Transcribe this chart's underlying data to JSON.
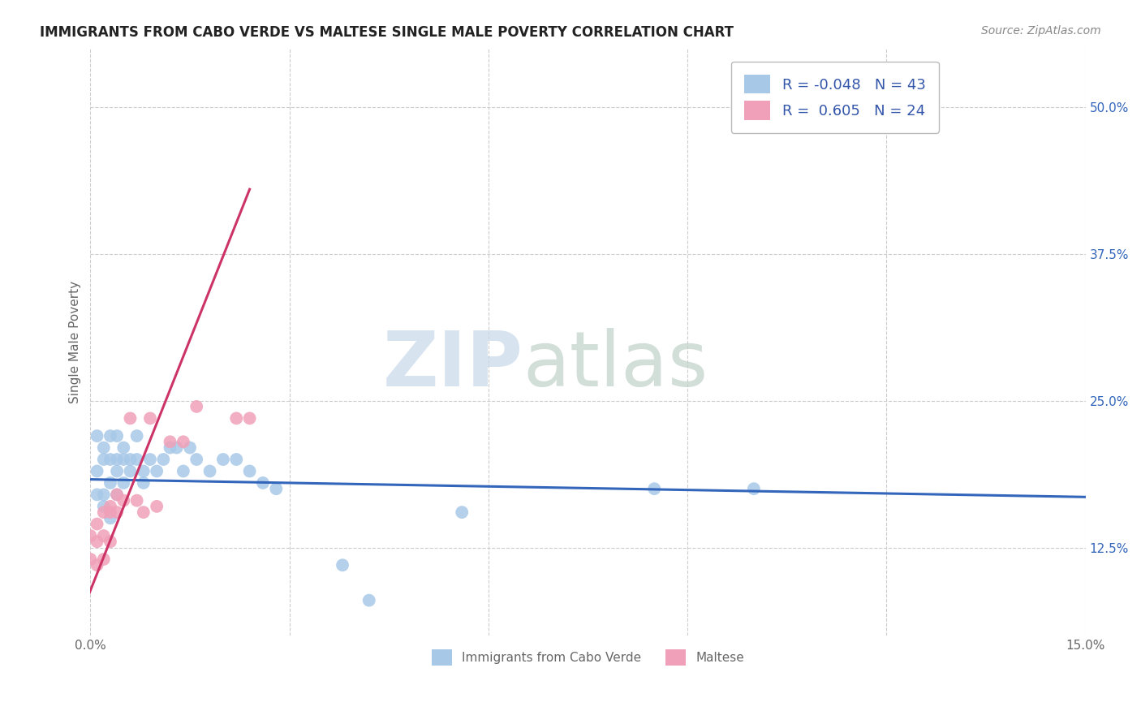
{
  "title": "IMMIGRANTS FROM CABO VERDE VS MALTESE SINGLE MALE POVERTY CORRELATION CHART",
  "source": "Source: ZipAtlas.com",
  "ylabel": "Single Male Poverty",
  "xlim": [
    0.0,
    0.15
  ],
  "ylim": [
    0.05,
    0.55
  ],
  "ytick_positions": [
    0.125,
    0.25,
    0.375,
    0.5
  ],
  "ytick_labels": [
    "12.5%",
    "25.0%",
    "37.5%",
    "50.0%"
  ],
  "cabo_verde_R": -0.048,
  "cabo_verde_N": 43,
  "maltese_R": 0.605,
  "maltese_N": 24,
  "cabo_verde_color": "#a8c8e8",
  "maltese_color": "#f0a0b8",
  "cabo_verde_line_color": "#3366bb",
  "maltese_line_color": "#cc3366",
  "legend_text_color": "#3355aa",
  "grid_color": "#cccccc",
  "background_color": "#ffffff",
  "title_color": "#222222",
  "source_color": "#888888",
  "axis_color": "#666666",
  "cabo_verde_x": [
    0.001,
    0.001,
    0.001,
    0.002,
    0.002,
    0.002,
    0.002,
    0.003,
    0.003,
    0.003,
    0.003,
    0.004,
    0.004,
    0.004,
    0.004,
    0.005,
    0.005,
    0.005,
    0.006,
    0.006,
    0.007,
    0.007,
    0.008,
    0.008,
    0.009,
    0.01,
    0.011,
    0.012,
    0.013,
    0.014,
    0.015,
    0.016,
    0.018,
    0.02,
    0.022,
    0.024,
    0.026,
    0.028,
    0.038,
    0.042,
    0.056,
    0.085,
    0.1
  ],
  "cabo_verde_y": [
    0.17,
    0.19,
    0.22,
    0.16,
    0.17,
    0.2,
    0.21,
    0.15,
    0.18,
    0.2,
    0.22,
    0.17,
    0.19,
    0.2,
    0.22,
    0.18,
    0.2,
    0.21,
    0.19,
    0.2,
    0.2,
    0.22,
    0.18,
    0.19,
    0.2,
    0.19,
    0.2,
    0.21,
    0.21,
    0.19,
    0.21,
    0.2,
    0.19,
    0.2,
    0.2,
    0.19,
    0.18,
    0.175,
    0.11,
    0.08,
    0.155,
    0.175,
    0.175
  ],
  "maltese_x": [
    0.0,
    0.0,
    0.001,
    0.001,
    0.001,
    0.002,
    0.002,
    0.002,
    0.003,
    0.003,
    0.003,
    0.004,
    0.004,
    0.005,
    0.006,
    0.007,
    0.008,
    0.009,
    0.01,
    0.012,
    0.014,
    0.016,
    0.022,
    0.024
  ],
  "maltese_y": [
    0.115,
    0.135,
    0.11,
    0.13,
    0.145,
    0.115,
    0.135,
    0.155,
    0.13,
    0.155,
    0.16,
    0.155,
    0.17,
    0.165,
    0.235,
    0.165,
    0.155,
    0.235,
    0.16,
    0.215,
    0.215,
    0.245,
    0.235,
    0.235
  ],
  "cv_line_x0": 0.0,
  "cv_line_x1": 0.15,
  "cv_line_y0": 0.183,
  "cv_line_y1": 0.168,
  "m_line_x0": -0.002,
  "m_line_x1": 0.024,
  "m_line_y0": 0.06,
  "m_line_y1": 0.43
}
